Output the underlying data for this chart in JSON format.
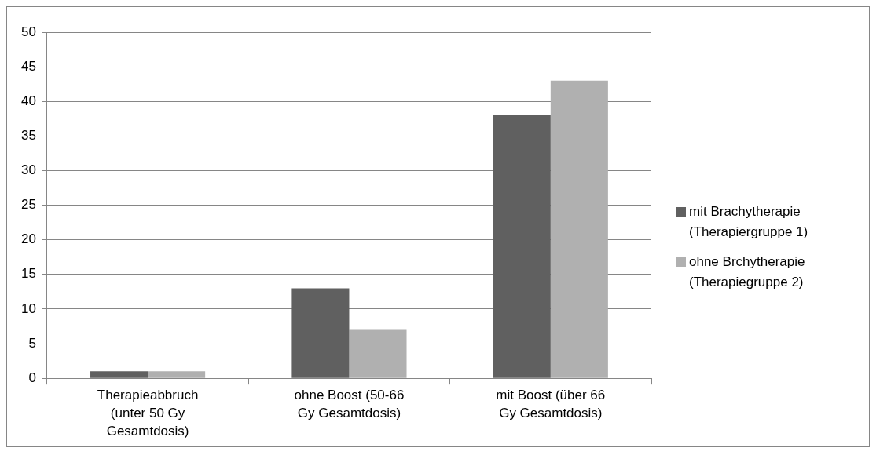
{
  "chart_data": {
    "type": "bar",
    "categories": [
      "Therapieabbruch (unter 50 Gy Gesamtdosis)",
      "ohne Boost (50-66 Gy Gesamtdosis)",
      "mit Boost (über 66 Gy Gesamtdosis)"
    ],
    "series": [
      {
        "name": "mit Brachytherapie (Therapiergruppe 1)",
        "color": "#606060",
        "values": [
          1,
          13,
          38
        ]
      },
      {
        "name": "ohne Brchytherapie (Therapiegruppe 2)",
        "color": "#b0b0b0",
        "values": [
          1,
          7,
          43
        ]
      }
    ],
    "ylim": [
      0,
      50
    ],
    "yticks": [
      0,
      5,
      10,
      15,
      20,
      25,
      30,
      35,
      40,
      45,
      50
    ],
    "grid": "y",
    "legend": "right"
  }
}
